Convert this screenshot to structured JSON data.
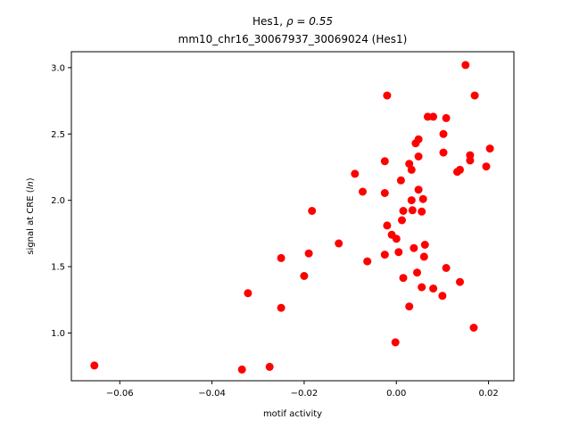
{
  "chart_data": {
    "type": "scatter",
    "title_line1_pre": "Hes1, ",
    "title_line1_math": "ρ = 0.55",
    "title_line2": "mm10_chr16_30067937_30069024 (Hes1)",
    "xlabel": "motif activity",
    "ylabel_pre": "signal at CRE (",
    "ylabel_math": "ln",
    "ylabel_post": ")",
    "xlim": [
      -0.0705,
      0.0255
    ],
    "ylim": [
      0.64,
      3.12
    ],
    "xticks": [
      -0.06,
      -0.04,
      -0.02,
      0.0,
      0.02
    ],
    "xtick_labels": [
      "−0.06",
      "−0.04",
      "−0.02",
      "0.00",
      "0.02"
    ],
    "yticks": [
      1.0,
      1.5,
      2.0,
      2.5,
      3.0
    ],
    "ytick_labels": [
      "1.0",
      "1.5",
      "2.0",
      "2.5",
      "3.0"
    ],
    "marker_color": "#ff0000",
    "points": [
      [
        -0.0655,
        0.755
      ],
      [
        -0.0335,
        0.725
      ],
      [
        -0.0275,
        0.745
      ],
      [
        -0.0322,
        1.3
      ],
      [
        -0.025,
        1.19
      ],
      [
        -0.025,
        1.565
      ],
      [
        -0.02,
        1.43
      ],
      [
        -0.019,
        1.6
      ],
      [
        -0.0183,
        1.92
      ],
      [
        -0.0125,
        1.675
      ],
      [
        -0.009,
        2.2
      ],
      [
        -0.0073,
        2.065
      ],
      [
        -0.0063,
        1.54
      ],
      [
        -0.0025,
        2.055
      ],
      [
        -0.0025,
        2.295
      ],
      [
        -0.002,
        2.79
      ],
      [
        -0.0025,
        1.59
      ],
      [
        -0.002,
        1.81
      ],
      [
        -0.001,
        1.74
      ],
      [
        0.0,
        1.71
      ],
      [
        0.0005,
        1.61
      ],
      [
        0.001,
        2.15
      ],
      [
        0.0012,
        1.85
      ],
      [
        0.0015,
        1.92
      ],
      [
        0.0015,
        1.415
      ],
      [
        0.0028,
        1.2
      ],
      [
        0.0028,
        2.275
      ],
      [
        0.0033,
        2.23
      ],
      [
        0.0033,
        2.0
      ],
      [
        0.0035,
        1.925
      ],
      [
        0.0038,
        1.64
      ],
      [
        0.0042,
        2.43
      ],
      [
        0.0048,
        2.46
      ],
      [
        0.0048,
        2.33
      ],
      [
        0.0048,
        2.08
      ],
      [
        0.0045,
        1.455
      ],
      [
        0.0055,
        1.915
      ],
      [
        0.0055,
        1.345
      ],
      [
        0.0058,
        2.01
      ],
      [
        0.006,
        1.575
      ],
      [
        0.0062,
        1.665
      ],
      [
        0.0068,
        2.63
      ],
      [
        0.008,
        2.63
      ],
      [
        0.008,
        1.335
      ],
      [
        0.01,
        1.28
      ],
      [
        0.0102,
        2.5
      ],
      [
        0.0102,
        2.36
      ],
      [
        0.0108,
        2.62
      ],
      [
        0.0108,
        1.49
      ],
      [
        0.0132,
        2.215
      ],
      [
        0.0138,
        2.23
      ],
      [
        0.0138,
        1.385
      ],
      [
        0.015,
        3.02
      ],
      [
        0.016,
        2.34
      ],
      [
        0.016,
        2.3
      ],
      [
        0.0168,
        1.04
      ],
      [
        0.017,
        2.79
      ],
      [
        0.0195,
        2.255
      ],
      [
        0.0203,
        2.39
      ],
      [
        -0.0002,
        0.93
      ]
    ]
  }
}
